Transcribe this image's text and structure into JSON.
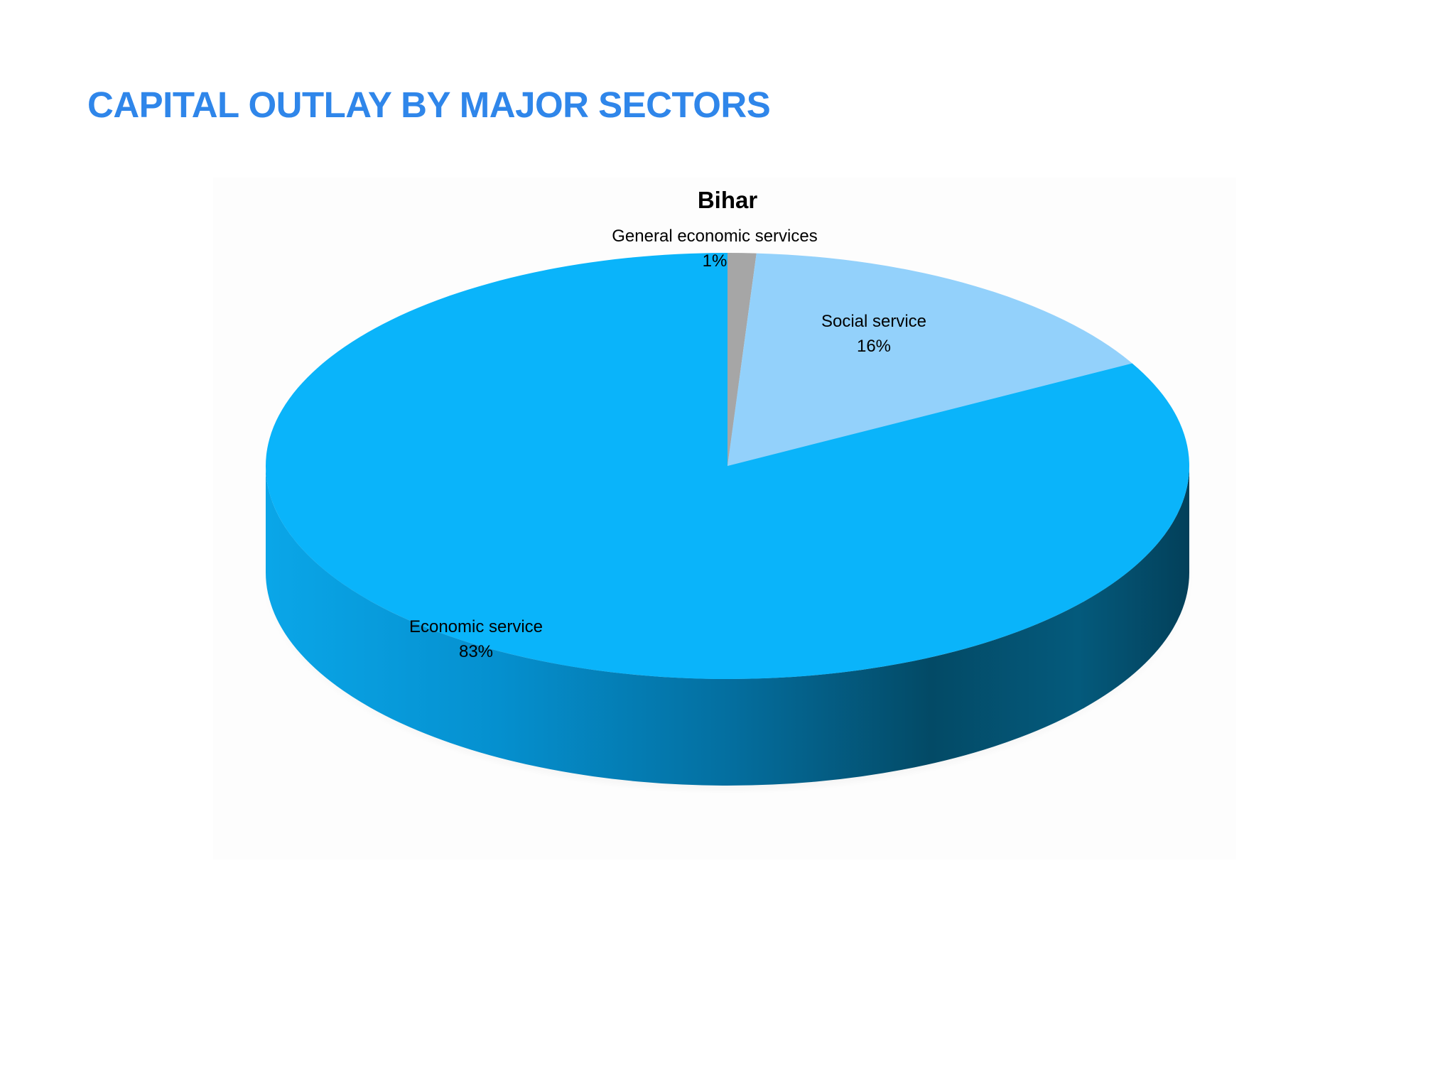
{
  "slide": {
    "title": "CAPITAL OUTLAY BY MAJOR SECTORS"
  },
  "colors": {
    "title": "#2f86ea",
    "economic_top": "#0ab4fa",
    "economic_side_light": "#0899dd",
    "economic_side_dark": "#034a66",
    "social_top": "#93d1fb",
    "general_top": "#a6a6a6"
  },
  "chart_data": {
    "type": "pie",
    "title": "Bihar",
    "style": "3d",
    "slices": [
      {
        "name": "General economic services",
        "value": 1,
        "label": "1%",
        "color": "#a6a6a6"
      },
      {
        "name": "Social service",
        "value": 16,
        "label": "16%",
        "color": "#93d1fb"
      },
      {
        "name": "Economic service",
        "value": 83,
        "label": "83%",
        "color": "#0ab4fa"
      }
    ]
  }
}
